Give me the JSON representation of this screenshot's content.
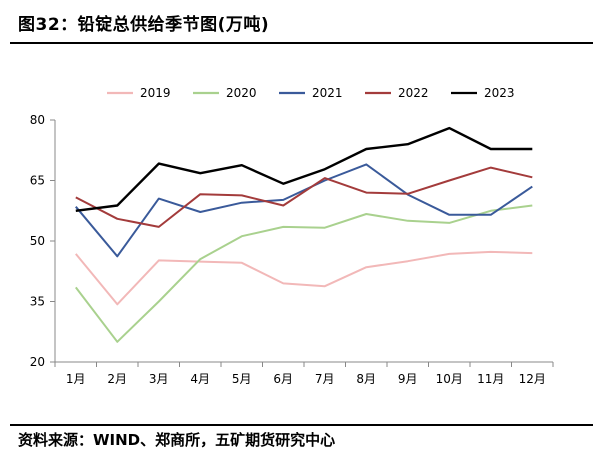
{
  "header": {
    "title": "图32：铅锭总供给季节图(万吨)"
  },
  "footer": {
    "source": "资料来源：WIND、郑商所，五矿期货研究中心"
  },
  "chart_data": {
    "type": "line",
    "title": "铅锭总供给季节图(万吨)",
    "xlabel": "",
    "ylabel": "",
    "categories": [
      "1月",
      "2月",
      "3月",
      "4月",
      "5月",
      "6月",
      "7月",
      "8月",
      "9月",
      "10月",
      "11月",
      "12月"
    ],
    "yticks": [
      20,
      35,
      50,
      65,
      80
    ],
    "ylim": [
      20,
      80
    ],
    "legend": "top-center",
    "series": [
      {
        "name": "2019",
        "color": "#f2b8b8",
        "values": [
          46.8,
          34.3,
          45.2,
          44.9,
          44.6,
          39.5,
          38.8,
          43.5,
          45.0,
          46.8,
          47.3,
          47.0
        ]
      },
      {
        "name": "2020",
        "color": "#a9d18e",
        "values": [
          38.5,
          25.0,
          35.0,
          45.5,
          51.2,
          53.5,
          53.3,
          56.7,
          55.0,
          54.5,
          57.5,
          58.8
        ]
      },
      {
        "name": "2021",
        "color": "#3a5a9a",
        "values": [
          58.5,
          46.2,
          60.5,
          57.2,
          59.5,
          60.2,
          65.0,
          69.0,
          61.5,
          56.5,
          56.5,
          63.5
        ]
      },
      {
        "name": "2022",
        "color": "#a33b3b",
        "values": [
          60.8,
          55.5,
          53.5,
          61.6,
          61.3,
          58.8,
          65.6,
          62.0,
          61.7,
          65.0,
          68.2,
          65.8
        ]
      },
      {
        "name": "2023",
        "color": "#000000",
        "values": [
          57.5,
          58.8,
          69.2,
          66.8,
          68.8,
          64.2,
          67.8,
          72.8,
          74.0,
          78.0,
          72.8,
          72.8
        ]
      }
    ]
  }
}
